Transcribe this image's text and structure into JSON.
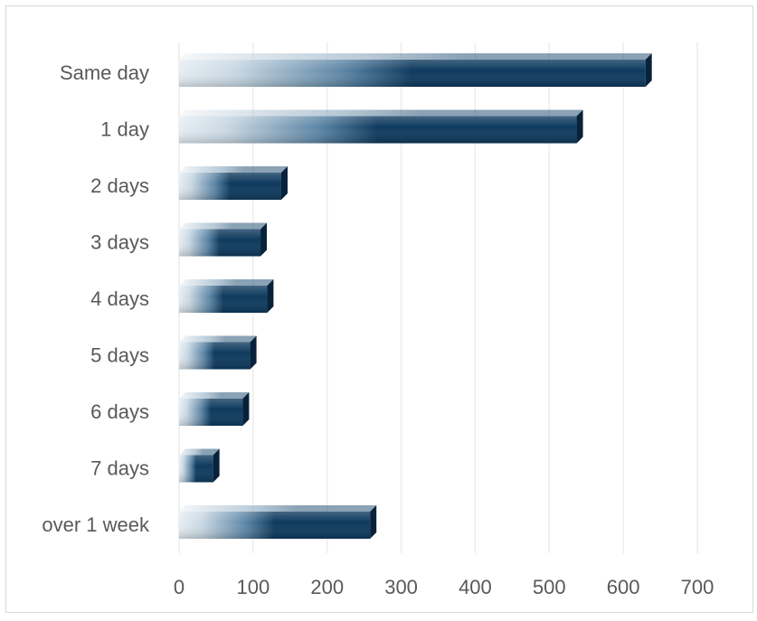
{
  "chart_data": {
    "type": "bar",
    "orientation": "horizontal",
    "categories": [
      "Same day",
      "1 day",
      "2 days",
      "3 days",
      "4 days",
      "5 days",
      "6 days",
      "7 days",
      "over 1 week"
    ],
    "values": [
      630,
      537,
      138,
      110,
      119,
      96,
      86,
      46,
      258
    ],
    "xlim": [
      0,
      700
    ],
    "x_ticks": [
      0,
      100,
      200,
      300,
      400,
      500,
      600,
      700
    ],
    "title": "",
    "xlabel": "",
    "ylabel": "",
    "grid": "vertical",
    "legend": "none",
    "bar_style": "3d-gradient"
  },
  "colors": {
    "bar_dark": "#0e3a5e",
    "bar_light": "#e6eef4",
    "bar_side": "#07223a",
    "bar_top": "#2b5678",
    "grid": "#ececec",
    "text": "#595959",
    "frame": "#d9d9d9"
  }
}
